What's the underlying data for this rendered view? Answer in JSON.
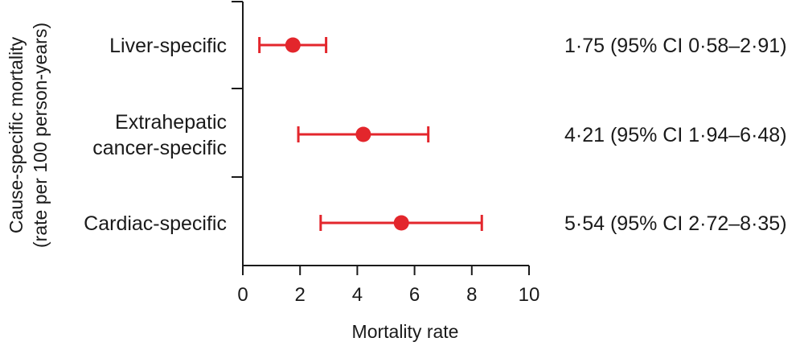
{
  "chart_data": {
    "type": "scatter",
    "subtype": "forest-plot-with-error-bars",
    "xlabel": "Mortality rate",
    "ylabel_lines": [
      "Cause-specific mortality",
      "(rate per 100 person-years)"
    ],
    "xlim": [
      0,
      10
    ],
    "xticks": [
      0,
      2,
      4,
      6,
      8,
      10
    ],
    "xtick_labels": [
      "0",
      "2",
      "4",
      "6",
      "8",
      "10"
    ],
    "grid": false,
    "series": [
      {
        "name": "Cause-specific mortality",
        "color": "#e3262c",
        "points": [
          {
            "category_lines": [
              "Liver-specific"
            ],
            "value": 1.75,
            "ci_low": 0.58,
            "ci_high": 2.91,
            "annotation": "1·75 (95% CI 0·58–2·91)"
          },
          {
            "category_lines": [
              "Extrahepatic",
              "cancer-specific"
            ],
            "value": 4.21,
            "ci_low": 1.94,
            "ci_high": 6.48,
            "annotation": "4·21 (95% CI 1·94–6·48)"
          },
          {
            "category_lines": [
              "Cardiac-specific"
            ],
            "value": 5.54,
            "ci_low": 2.72,
            "ci_high": 8.35,
            "annotation": "5·54 (95% CI 2·72–8·35)"
          }
        ]
      }
    ]
  }
}
